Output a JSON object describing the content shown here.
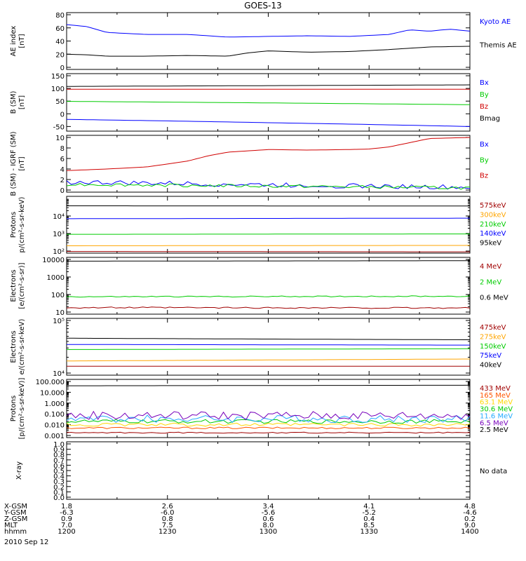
{
  "title": "GOES-13",
  "date_label": "2010 Sep 12",
  "colors": {
    "black": "#000000",
    "blue": "#0000ff",
    "red": "#d00000",
    "green": "#00cc00",
    "orange": "#ffa500",
    "yellow": "#ffd700",
    "cyan": "#00aaff",
    "purple": "#7700bb",
    "darkred": "#a00000",
    "orangered": "#ff5500",
    "darkorange": "#e07000",
    "lightblue": "#22aaff"
  },
  "chart_data": [
    {
      "type": "line",
      "id": "ae",
      "ylabel_lines": [
        "AE index",
        "[nT]"
      ],
      "ylim": [
        0,
        80
      ],
      "scale": "linear",
      "ticks": [
        {
          "v": 0,
          "t": "0"
        },
        {
          "v": 20,
          "t": "20"
        },
        {
          "v": 40,
          "t": "40"
        },
        {
          "v": 60,
          "t": "60"
        },
        {
          "v": 80,
          "t": "80"
        }
      ],
      "series": [
        {
          "name": "Kyoto AE",
          "color": "blue",
          "x": [
            0,
            0.05,
            0.1,
            0.2,
            0.3,
            0.4,
            0.5,
            0.6,
            0.7,
            0.8,
            0.85,
            0.9,
            0.95,
            1.0
          ],
          "y": [
            65,
            62,
            53,
            50,
            50,
            46,
            47,
            48,
            47,
            50,
            57,
            55,
            58,
            55
          ]
        },
        {
          "name": "Themis AE",
          "color": "black",
          "x": [
            0,
            0.05,
            0.1,
            0.2,
            0.3,
            0.4,
            0.45,
            0.5,
            0.6,
            0.7,
            0.8,
            0.85,
            0.9,
            1.0
          ],
          "y": [
            20,
            19,
            17,
            17,
            18,
            17,
            22,
            25,
            23,
            24,
            27,
            29,
            31,
            32
          ]
        }
      ]
    },
    {
      "type": "line",
      "id": "bsm",
      "ylabel_lines": [
        "B (SM)",
        "[nT]"
      ],
      "ylim": [
        -60,
        150
      ],
      "scale": "linear",
      "ticks": [
        {
          "v": -50,
          "t": "-50"
        },
        {
          "v": 0,
          "t": "0"
        },
        {
          "v": 50,
          "t": "50"
        },
        {
          "v": 100,
          "t": "100"
        },
        {
          "v": 150,
          "t": "150"
        }
      ],
      "series": [
        {
          "name": "Bx",
          "color": "blue",
          "x": [
            0,
            0.25,
            0.5,
            0.75,
            1.0
          ],
          "y": [
            -22,
            -28,
            -35,
            -42,
            -50
          ]
        },
        {
          "name": "By",
          "color": "green",
          "x": [
            0,
            0.5,
            1.0
          ],
          "y": [
            49,
            43,
            36
          ]
        },
        {
          "name": "Bz",
          "color": "red",
          "x": [
            0,
            1.0
          ],
          "y": [
            97,
            97
          ]
        },
        {
          "name": "Bmag",
          "color": "black",
          "x": [
            0,
            0.5,
            1.0
          ],
          "y": [
            108,
            111,
            114
          ]
        }
      ]
    },
    {
      "type": "line",
      "id": "bigrf",
      "ylabel_lines": [
        "B (SM) - IGRF (SM)",
        "[nT]"
      ],
      "ylim": [
        0,
        10
      ],
      "scale": "linear",
      "ticks": [
        {
          "v": 0,
          "t": "0"
        },
        {
          "v": 2,
          "t": "2"
        },
        {
          "v": 4,
          "t": "4"
        },
        {
          "v": 6,
          "t": "6"
        },
        {
          "v": 8,
          "t": "8"
        },
        {
          "v": 10,
          "t": "10"
        }
      ],
      "series": [
        {
          "name": "Bx",
          "color": "blue",
          "x": [
            0,
            1.0
          ],
          "y": [
            1.5,
            0.5
          ],
          "wiggle": 0.45
        },
        {
          "name": "By",
          "color": "green",
          "x": [
            0,
            1.0
          ],
          "y": [
            1.1,
            0.4
          ],
          "wiggle": 0.3
        },
        {
          "name": "Bz",
          "color": "red",
          "x": [
            0,
            0.1,
            0.2,
            0.3,
            0.35,
            0.4,
            0.5,
            0.6,
            0.7,
            0.75,
            0.8,
            0.85,
            0.9,
            1.0
          ],
          "y": [
            3.7,
            4.0,
            4.4,
            5.5,
            6.5,
            7.2,
            7.7,
            7.6,
            7.7,
            7.8,
            8.2,
            9.0,
            9.8,
            10
          ]
        }
      ]
    },
    {
      "type": "line",
      "id": "protons1",
      "ylabel_lines": [
        "Protons",
        "p/(cm²-s-sr-keV)"
      ],
      "ylim": [
        100,
        100000
      ],
      "scale": "log",
      "ticks": [
        {
          "v": 100,
          "t": "10²"
        },
        {
          "v": 1000,
          "t": "10³"
        },
        {
          "v": 10000,
          "t": "10⁴"
        }
      ],
      "series": [
        {
          "name": "575keV",
          "color": "darkred",
          "x": [
            0,
            1.0
          ],
          "y": [
            95,
            90
          ]
        },
        {
          "name": "300keV",
          "color": "orange",
          "x": [
            0,
            1.0
          ],
          "y": [
            200,
            210
          ]
        },
        {
          "name": "210keV",
          "color": "green",
          "x": [
            0,
            1.0
          ],
          "y": [
            900,
            950
          ]
        },
        {
          "name": "140keV",
          "color": "blue",
          "x": [
            0,
            1.0
          ],
          "y": [
            7000,
            7500
          ]
        },
        {
          "name": "95keV",
          "color": "black",
          "x": [
            0,
            1.0
          ],
          "y": [
            38000,
            37000
          ]
        }
      ]
    },
    {
      "type": "line",
      "id": "electrons1",
      "ylabel_lines": [
        "Electrons",
        "[e/(cm²-s-sr)]"
      ],
      "ylim": [
        10,
        10000
      ],
      "scale": "log",
      "ticks": [
        {
          "v": 10,
          "t": "10"
        },
        {
          "v": 100,
          "t": "100"
        },
        {
          "v": 1000,
          "t": "1000"
        },
        {
          "v": 10000,
          "t": "10000"
        }
      ],
      "series": [
        {
          "name": "4 MeV",
          "color": "darkred",
          "x": [
            0,
            1.0
          ],
          "y": [
            18,
            17
          ],
          "wiggle": 0.04
        },
        {
          "name": "2 MeV",
          "color": "green",
          "x": [
            0,
            1.0
          ],
          "y": [
            75,
            80
          ],
          "wiggle": 0.03
        },
        {
          "name": "0.6 MeV",
          "color": "black",
          "x": [
            0,
            1.0
          ],
          "y": [
            8000,
            8500
          ]
        }
      ]
    },
    {
      "type": "line",
      "id": "electrons2",
      "ylabel_lines": [
        "Electrons",
        "e/(cm²-s-sr-keV)"
      ],
      "ylim": [
        10000,
        100000
      ],
      "scale": "log",
      "ticks": [
        {
          "v": 10000,
          "t": "10⁴"
        },
        {
          "v": 100000,
          "t": "10⁵"
        }
      ],
      "series": [
        {
          "name": "475keV",
          "color": "darkred",
          "x": [
            0,
            1.0
          ],
          "y": [
            13500,
            13500
          ]
        },
        {
          "name": "275keV",
          "color": "orange",
          "x": [
            0,
            1.0
          ],
          "y": [
            17000,
            18500
          ]
        },
        {
          "name": "150keV",
          "color": "green",
          "x": [
            0,
            1.0
          ],
          "y": [
            28000,
            29000
          ]
        },
        {
          "name": "75keV",
          "color": "blue",
          "x": [
            0,
            1.0
          ],
          "y": [
            35000,
            34000
          ]
        },
        {
          "name": "40keV",
          "color": "black",
          "x": [
            0,
            0.6,
            1.0
          ],
          "y": [
            46000,
            44000,
            43000
          ]
        }
      ]
    },
    {
      "type": "line",
      "id": "protons2",
      "ylabel_lines": [
        "Protons",
        "[p/(cm²-s-sr-keV)]"
      ],
      "ylim": [
        0.001,
        100
      ],
      "scale": "log",
      "ticks": [
        {
          "v": 0.001,
          "t": "0.001"
        },
        {
          "v": 0.01,
          "t": "0.010"
        },
        {
          "v": 0.1,
          "t": "0.100"
        },
        {
          "v": 1,
          "t": "1.000"
        },
        {
          "v": 10,
          "t": "10.000"
        },
        {
          "v": 100,
          "t": "100.000"
        }
      ],
      "series": [
        {
          "name": "433 MeV",
          "color": "darkred",
          "x": [
            0,
            1.0
          ],
          "y": [
            0.0018,
            0.0018
          ],
          "wiggle": 0.05
        },
        {
          "name": "165 MeV",
          "color": "orangered",
          "x": [
            0,
            1.0
          ],
          "y": [
            0.005,
            0.005
          ],
          "wiggle": 0.08
        },
        {
          "name": "63.1 MeV",
          "color": "yellow",
          "x": [
            0,
            1.0
          ],
          "y": [
            0.01,
            0.01
          ],
          "wiggle": 0.15
        },
        {
          "name": "30.6 MeV",
          "color": "green",
          "x": [
            0,
            1.0
          ],
          "y": [
            0.02,
            0.02
          ],
          "wiggle": 0.18
        },
        {
          "name": "11.6 MeV",
          "color": "lightblue",
          "x": [
            0,
            1.0
          ],
          "y": [
            0.035,
            0.035
          ],
          "wiggle": 0.35
        },
        {
          "name": "6.5 MeV",
          "color": "purple",
          "x": [
            0,
            1.0
          ],
          "y": [
            0.07,
            0.07
          ],
          "wiggle": 0.4
        },
        {
          "name": "2.5 MeV",
          "color": "black",
          "x": [
            0,
            1.0
          ],
          "y": [
            40,
            45
          ]
        }
      ]
    },
    {
      "type": "line",
      "id": "xray",
      "ylabel_lines": [
        "X-ray"
      ],
      "ylim": [
        0,
        1
      ],
      "scale": "linear",
      "ticks": [
        {
          "v": 0,
          "t": "0.0"
        },
        {
          "v": 0.1,
          "t": "0.1"
        },
        {
          "v": 0.2,
          "t": "0.2"
        },
        {
          "v": 0.3,
          "t": "0.3"
        },
        {
          "v": 0.4,
          "t": "0.4"
        },
        {
          "v": 0.5,
          "t": "0.5"
        },
        {
          "v": 0.6,
          "t": "0.6"
        },
        {
          "v": 0.7,
          "t": "0.7"
        },
        {
          "v": 0.8,
          "t": "0.8"
        },
        {
          "v": 0.9,
          "t": "0.9"
        },
        {
          "v": 1.0,
          "t": "1.0"
        }
      ],
      "series": [],
      "note": "No data"
    }
  ],
  "x_axis": {
    "row_labels": [
      "X-GSM",
      "Y-GSM",
      "Z-GSM",
      "MLT",
      "hhmm"
    ],
    "columns": [
      {
        "values": [
          "1.8",
          "-6.3",
          "0.9",
          "7.0",
          "1200"
        ]
      },
      {
        "values": [
          "2.6",
          "-6.0",
          "0.8",
          "7.5",
          "1230"
        ]
      },
      {
        "values": [
          "3.4",
          "-5.6",
          "0.6",
          "8.0",
          "1300"
        ]
      },
      {
        "values": [
          "4.1",
          "-5.2",
          "0.4",
          "8.5",
          "1330"
        ]
      },
      {
        "values": [
          "4.8",
          "-4.6",
          "0.2",
          "9.0",
          "1400"
        ]
      }
    ]
  }
}
